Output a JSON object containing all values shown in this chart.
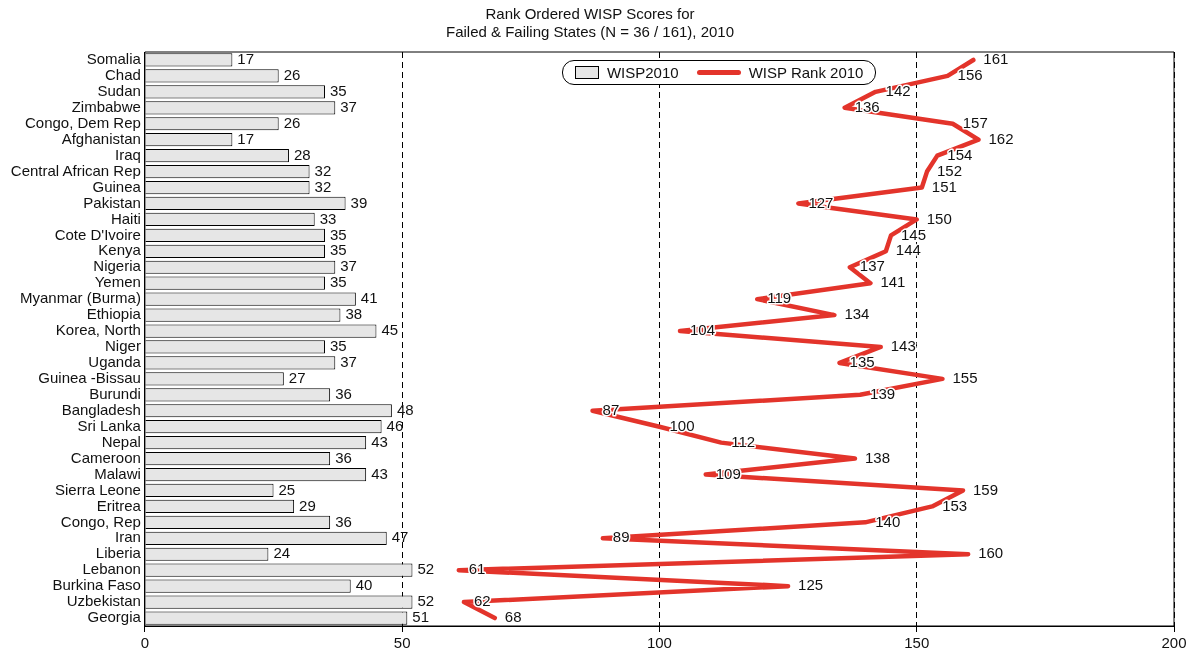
{
  "chart_data": {
    "type": "bar",
    "orientation": "horizontal",
    "title": "Rank Ordered WISP Scores for\nFailed & Failing States (N = 36 / 161), 2010",
    "categories": [
      "Somalia",
      "Chad",
      "Sudan",
      "Zimbabwe",
      "Congo, Dem Rep",
      "Afghanistan",
      "Iraq",
      "Central African Rep",
      "Guinea",
      "Pakistan",
      "Haiti",
      "Cote D'Ivoire",
      "Kenya",
      "Nigeria",
      "Yemen",
      "Myanmar (Burma)",
      "Ethiopia",
      "Korea, North",
      "Niger",
      "Uganda",
      "Guinea -Bissau",
      "Burundi",
      "Bangladesh",
      "Sri Lanka",
      "Nepal",
      "Cameroon",
      "Malawi",
      "Sierra Leone",
      "Eritrea",
      "Congo, Rep",
      "Iran",
      "Liberia",
      "Lebanon",
      "Burkina Faso",
      "Uzbekistan",
      "Georgia"
    ],
    "series": [
      {
        "name": "WISP2010",
        "color": "#e6e6e6",
        "values": [
          17,
          26,
          35,
          37,
          26,
          17,
          28,
          32,
          32,
          39,
          33,
          35,
          35,
          37,
          35,
          41,
          38,
          45,
          35,
          37,
          27,
          36,
          48,
          46,
          43,
          36,
          43,
          25,
          29,
          36,
          47,
          24,
          52,
          40,
          52,
          51
        ]
      },
      {
        "name": "WISP Rank 2010",
        "type": "line",
        "color": "#e3342b",
        "values": [
          161,
          156,
          142,
          136,
          157,
          162,
          154,
          152,
          151,
          127,
          150,
          145,
          144,
          137,
          141,
          119,
          134,
          104,
          143,
          135,
          155,
          139,
          87,
          100,
          112,
          138,
          109,
          159,
          153,
          140,
          89,
          160,
          61,
          125,
          62,
          68
        ]
      }
    ],
    "xlim": [
      0,
      200
    ],
    "xticks": [
      0,
      50,
      100,
      150,
      200
    ],
    "grid": "x",
    "legend": "top",
    "data_labels": true
  }
}
